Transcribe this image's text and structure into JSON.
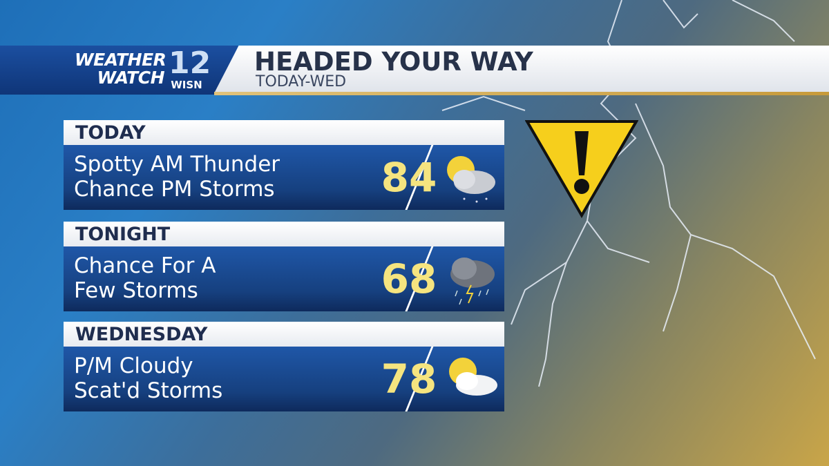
{
  "logo": {
    "text": "WEATHER WATCH",
    "line1": "WEATHER",
    "line2": "WATCH",
    "number": "12",
    "callsign": "WISN"
  },
  "header": {
    "title": "HEADED YOUR WAY",
    "subtitle": "TODAY-WED"
  },
  "periods": [
    {
      "label": "TODAY",
      "description": "Spotty AM Thunder\nChance PM Storms",
      "temp": "84",
      "icon": "partly-sunny-showers-icon"
    },
    {
      "label": "TONIGHT",
      "description": "Chance For A\nFew Storms",
      "temp": "68",
      "icon": "thunderstorm-icon"
    },
    {
      "label": "WEDNESDAY",
      "description": "P/M Cloudy\nScat'd Storms",
      "temp": "78",
      "icon": "partly-cloudy-icon"
    }
  ],
  "alert": {
    "icon": "warning-triangle-icon",
    "color": "#f6cf1c"
  },
  "colors": {
    "temp": "#f5e47f",
    "panel": "#16407f"
  }
}
